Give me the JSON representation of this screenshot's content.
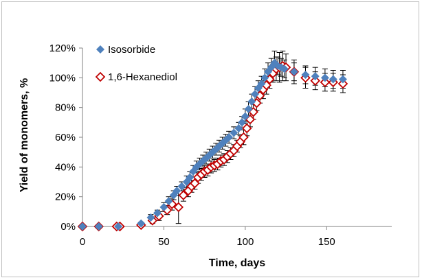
{
  "chart_data": {
    "type": "scatter",
    "xlabel": "Time, days",
    "ylabel": "Yield of monomers, %",
    "xlim": [
      0,
      190
    ],
    "ylim": [
      0,
      120
    ],
    "x_ticks": [
      0,
      50,
      100,
      150
    ],
    "y_ticks": [
      0,
      20,
      40,
      60,
      80,
      100,
      120
    ],
    "x_tick_labels": [
      "0",
      "50",
      "100",
      "150"
    ],
    "y_tick_labels": [
      "0%",
      "20%",
      "40%",
      "60%",
      "80%",
      "100%",
      "120%"
    ],
    "grid": false,
    "legend_position": "top-left",
    "series": [
      {
        "name": "Isosorbide",
        "marker": "filled-diamond",
        "color": "#4F81BD",
        "x": [
          0,
          10,
          22,
          36,
          42,
          46,
          50,
          53,
          56,
          58,
          61,
          64,
          66,
          68,
          70,
          72,
          74,
          76,
          78,
          80,
          82,
          84,
          86,
          88,
          90,
          93,
          96,
          98,
          100,
          102,
          104,
          106,
          108,
          110,
          112,
          114,
          116,
          118,
          120,
          122,
          124,
          130,
          137,
          143,
          149,
          154,
          160
        ],
        "y": [
          0,
          0,
          0,
          2,
          6,
          9,
          13,
          17,
          21,
          24,
          27,
          30,
          33,
          37,
          40,
          42,
          44,
          46,
          48,
          50,
          52,
          54,
          56,
          58,
          60,
          63,
          66,
          70,
          74,
          79,
          84,
          89,
          93,
          96,
          100,
          104,
          107,
          110,
          108,
          107,
          106,
          104,
          102,
          101,
          100,
          99,
          99
        ],
        "error": [
          0,
          0,
          0,
          1,
          2,
          2,
          3,
          3,
          3,
          3,
          3,
          4,
          4,
          4,
          4,
          4,
          4,
          4,
          4,
          4,
          4,
          4,
          4,
          4,
          4,
          4,
          4,
          4,
          5,
          5,
          5,
          5,
          5,
          5,
          6,
          6,
          6,
          8,
          6,
          6,
          6,
          6,
          6,
          6,
          6,
          6,
          6
        ]
      },
      {
        "name": "1,6-Hexanediol",
        "marker": "open-diamond",
        "color": "#C00000",
        "x": [
          0,
          10,
          21,
          23,
          36,
          43,
          47,
          52,
          55,
          59,
          62,
          65,
          67,
          69,
          71,
          73,
          75,
          77,
          79,
          81,
          83,
          85,
          87,
          89,
          91,
          93,
          95,
          97,
          99,
          101,
          103,
          105,
          107,
          109,
          111,
          113,
          115,
          117,
          119,
          121,
          123,
          125,
          130,
          137,
          143,
          149,
          154,
          160
        ],
        "y": [
          0,
          0,
          0,
          0,
          1,
          4,
          7,
          11,
          15,
          13,
          21,
          24,
          27,
          29,
          33,
          35,
          37,
          38,
          40,
          41,
          42,
          44,
          45,
          47,
          49,
          51,
          54,
          57,
          60,
          66,
          72,
          77,
          83,
          88,
          92,
          95,
          99,
          103,
          106,
          107,
          108,
          107,
          104,
          100,
          98,
          97,
          97,
          96
        ],
        "error": [
          0,
          0,
          0,
          0,
          1,
          2,
          3,
          3,
          4,
          11,
          4,
          4,
          4,
          4,
          4,
          4,
          4,
          4,
          4,
          4,
          4,
          4,
          4,
          4,
          4,
          4,
          4,
          4,
          5,
          5,
          5,
          5,
          5,
          5,
          6,
          6,
          6,
          6,
          8,
          10,
          10,
          9,
          8,
          7,
          6,
          6,
          6,
          6
        ]
      }
    ]
  }
}
